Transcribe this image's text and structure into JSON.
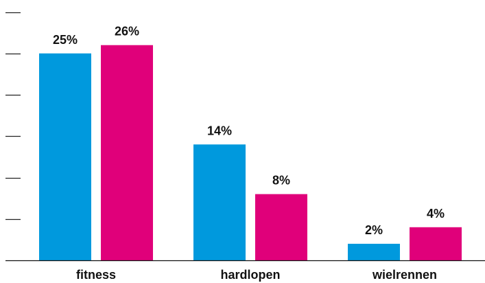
{
  "chart_data": {
    "type": "bar",
    "categories": [
      "fitness",
      "hardlopen",
      "wielrennen"
    ],
    "series": [
      {
        "color": "#0099dd",
        "values": [
          25,
          14,
          2
        ],
        "labels": [
          "25%",
          "14%",
          "2%"
        ]
      },
      {
        "color": "#e0007a",
        "values": [
          26,
          8,
          4
        ],
        "labels": [
          "26%",
          "8%",
          "4%"
        ]
      }
    ],
    "ylim": [
      0,
      30
    ],
    "y_tick_values": [
      5,
      10,
      15,
      20,
      25,
      30
    ],
    "y_tick_labels": "none",
    "gridlines": false,
    "legend": "none",
    "title": "",
    "xlabel": "",
    "ylabel": ""
  }
}
